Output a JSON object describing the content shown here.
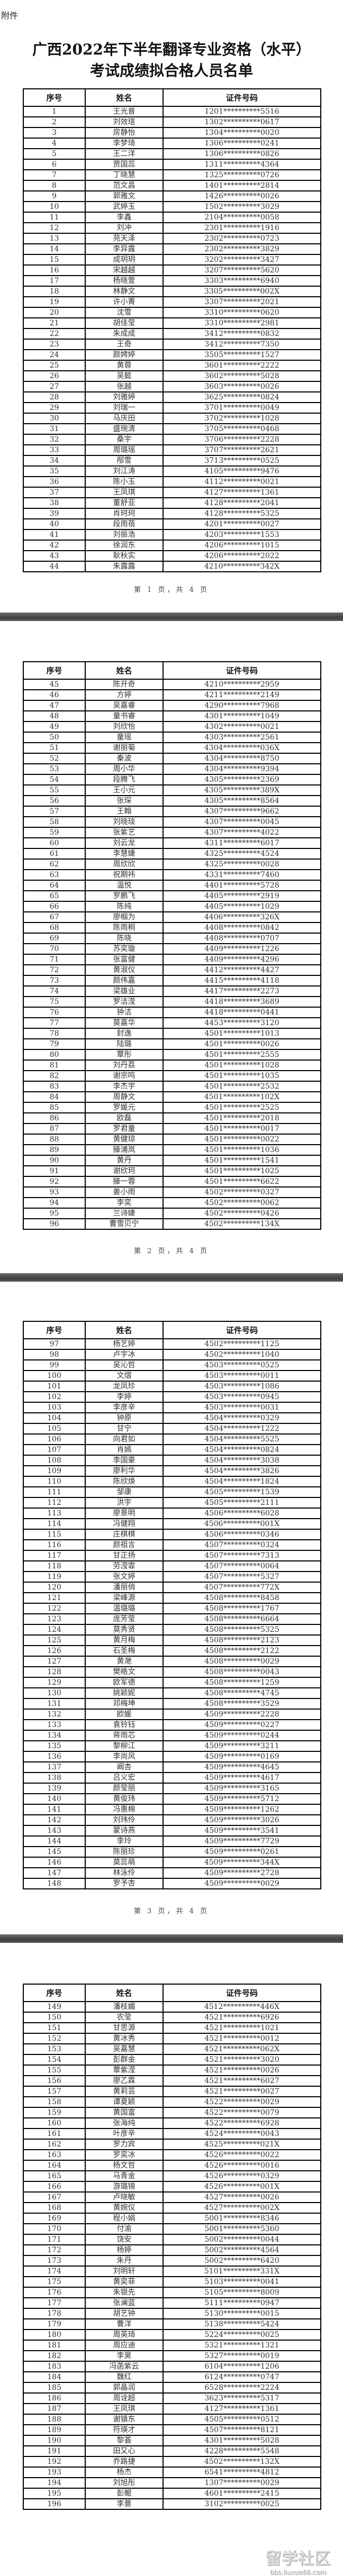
{
  "attachment_label": "附件",
  "title_line1": "广西2022年下半年翻译专业资格（水平）",
  "title_line2": "考试成绩拟合格人员名单",
  "columns": [
    "序号",
    "姓名",
    "证件号码"
  ],
  "watermark": {
    "text": "留学社区",
    "url": "bbs.liuxue86.com"
  },
  "pages": [
    {
      "footer": "第 1 页，共 4 页",
      "rows": [
        [
          "1",
          "王光普",
          "1201**********5516"
        ],
        [
          "2",
          "刘效瑄",
          "1302**********0617"
        ],
        [
          "3",
          "房静怡",
          "1304**********0020"
        ],
        [
          "4",
          "李梦琦",
          "1306**********0241"
        ],
        [
          "5",
          "王二洋",
          "1306**********0826"
        ],
        [
          "6",
          "贾国蕊",
          "1311**********4364"
        ],
        [
          "7",
          "丁晓慧",
          "1325**********0726"
        ],
        [
          "8",
          "范文昌",
          "1401**********2814"
        ],
        [
          "9",
          "郭雅文",
          "1426**********0026"
        ],
        [
          "10",
          "武婷玉",
          "1502**********3029"
        ],
        [
          "11",
          "李鑫",
          "2104**********0058"
        ],
        [
          "12",
          "刘冲",
          "2301**********1916"
        ],
        [
          "13",
          "苑天泽",
          "2302**********0723"
        ],
        [
          "14",
          "李异露",
          "2302**********3829"
        ],
        [
          "15",
          "成玥玥",
          "3202**********3427"
        ],
        [
          "16",
          "宋越越",
          "3207**********5620"
        ],
        [
          "17",
          "杨晓萱",
          "3303**********6940"
        ],
        [
          "18",
          "林静文",
          "3305**********002X"
        ],
        [
          "19",
          "许小菁",
          "3307**********2021"
        ],
        [
          "20",
          "沈雪",
          "3310**********0620"
        ],
        [
          "21",
          "胡佳莹",
          "3310**********2981"
        ],
        [
          "22",
          "朱成成",
          "3412**********0832"
        ],
        [
          "23",
          "王奇",
          "3412**********7350"
        ],
        [
          "24",
          "颜娉婷",
          "3505**********1527"
        ],
        [
          "25",
          "黄蓉",
          "3601**********2222"
        ],
        [
          "26",
          "吴懿",
          "3602**********5028"
        ],
        [
          "27",
          "张越",
          "3603**********0026"
        ],
        [
          "28",
          "刘雅婷",
          "3625**********0824"
        ],
        [
          "29",
          "刘瑞一",
          "3701**********0049"
        ],
        [
          "30",
          "马庆田",
          "3702**********1028"
        ],
        [
          "31",
          "盛琬清",
          "3705**********0468"
        ],
        [
          "32",
          "桑宇",
          "3706**********2228"
        ],
        [
          "33",
          "周璐瑶",
          "3707**********2621"
        ],
        [
          "34",
          "邴雪",
          "3713**********0525"
        ],
        [
          "35",
          "刘江涛",
          "4105**********9476"
        ],
        [
          "36",
          "陈小玉",
          "4112**********0021"
        ],
        [
          "37",
          "王凤琪",
          "4127**********1361"
        ],
        [
          "38",
          "董舒亚",
          "4128**********2041"
        ],
        [
          "39",
          "肖珂珂",
          "4128**********5325"
        ],
        [
          "40",
          "段雨蓓",
          "4201**********0027"
        ],
        [
          "41",
          "刘振浩",
          "4203**********1553"
        ],
        [
          "42",
          "徐润东",
          "4206**********1015"
        ],
        [
          "43",
          "耿秋实",
          "4206**********2022"
        ],
        [
          "44",
          "朱露露",
          "4210**********342X"
        ]
      ]
    },
    {
      "footer": "第 2 页，共 4 页",
      "rows": [
        [
          "45",
          "陈开奇",
          "4210**********2959"
        ],
        [
          "46",
          "方婷",
          "4211**********2149"
        ],
        [
          "47",
          "吴嘉睿",
          "4290**********7968"
        ],
        [
          "48",
          "童书睿",
          "4301**********1049"
        ],
        [
          "49",
          "刘欣怡",
          "4302**********0021"
        ],
        [
          "50",
          "童瑶",
          "4303**********2561"
        ],
        [
          "51",
          "谢丽菊",
          "4304**********036X"
        ],
        [
          "52",
          "秦波",
          "4304**********8750"
        ],
        [
          "53",
          "周小华",
          "4304**********9394"
        ],
        [
          "54",
          "段腾飞",
          "4305**********2369"
        ],
        [
          "55",
          "王小元",
          "4305**********389X"
        ],
        [
          "56",
          "张琛",
          "4305**********8564"
        ],
        [
          "57",
          "王翰",
          "4307**********9662"
        ],
        [
          "58",
          "刘晓琰",
          "4307**********0045"
        ],
        [
          "59",
          "张紫艺",
          "4307**********4022"
        ],
        [
          "60",
          "刘云龙",
          "4311**********6017"
        ],
        [
          "61",
          "李慧婕",
          "4325**********4524"
        ],
        [
          "62",
          "周欣欣",
          "4325**********0028"
        ],
        [
          "63",
          "祝期祎",
          "4331**********7460"
        ],
        [
          "64",
          "温悦",
          "4401**********5728"
        ],
        [
          "65",
          "罗鹏飞",
          "4405**********2919"
        ],
        [
          "66",
          "陈纯",
          "4405**********1029"
        ],
        [
          "67",
          "廖帼为",
          "4406**********326X"
        ],
        [
          "68",
          "陈雨桐",
          "4408**********0842"
        ],
        [
          "69",
          "陈晓",
          "4408**********0707"
        ],
        [
          "70",
          "苏奕璇",
          "4409**********1226"
        ],
        [
          "71",
          "张富健",
          "4409**********4296"
        ],
        [
          "72",
          "黄淑仪",
          "4412**********4427"
        ],
        [
          "73",
          "颜伟嘉",
          "4415**********4118"
        ],
        [
          "74",
          "梁雄业",
          "4417**********2273"
        ],
        [
          "75",
          "罗洁滢",
          "4418**********3689"
        ],
        [
          "76",
          "钟洁",
          "4418**********0441"
        ],
        [
          "77",
          "莫嘉华",
          "4453**********3120"
        ],
        [
          "78",
          "封逸",
          "4501**********1013"
        ],
        [
          "79",
          "陆璐",
          "4501**********0026"
        ],
        [
          "80",
          "覃彤",
          "4501**********2555"
        ],
        [
          "81",
          "刘丹荔",
          "4501**********1028"
        ],
        [
          "82",
          "谢宗鸣",
          "4501**********1035"
        ],
        [
          "83",
          "李杰宇",
          "4501**********2532"
        ],
        [
          "84",
          "周静文",
          "4501**********102X"
        ],
        [
          "85",
          "罗媛元",
          "4501**********2525"
        ],
        [
          "86",
          "欧磊",
          "4501**********2018"
        ],
        [
          "87",
          "罗君童",
          "4501**********0017"
        ],
        [
          "88",
          "黄健琼",
          "4501**********0022"
        ],
        [
          "89",
          "滕浦岚",
          "4501**********1036"
        ],
        [
          "90",
          "黄丹",
          "4501**********1541"
        ],
        [
          "91",
          "谢欣珂",
          "4501**********1025"
        ],
        [
          "92",
          "滕一蓉",
          "4501**********6622"
        ],
        [
          "93",
          "姜小雨",
          "4502**********0327"
        ],
        [
          "94",
          "李奕",
          "4502**********0062"
        ],
        [
          "95",
          "兰诗婕",
          "4502**********0426"
        ],
        [
          "96",
          "曹雪贝宁",
          "4502**********134X"
        ]
      ]
    },
    {
      "footer": "第 3 页，共 4 页",
      "rows": [
        [
          "97",
          "杨艺婷",
          "4502**********1125"
        ],
        [
          "98",
          "卢宇冰",
          "4502**********1040"
        ],
        [
          "99",
          "吴沁哲",
          "4503**********0525"
        ],
        [
          "100",
          "文熠",
          "4503**********0011"
        ],
        [
          "101",
          "龙凤珍",
          "4503**********1086"
        ],
        [
          "102",
          "李婷",
          "4503**********0945"
        ],
        [
          "103",
          "李彦辛",
          "4503**********0031"
        ],
        [
          "104",
          "钟原",
          "4504**********0329"
        ],
        [
          "105",
          "甘宁",
          "4504**********1222"
        ],
        [
          "106",
          "向君如",
          "4504**********5525"
        ],
        [
          "107",
          "肖嫣",
          "4504**********0824"
        ],
        [
          "108",
          "李国豪",
          "4504**********3038"
        ],
        [
          "109",
          "廖利华",
          "4504**********3826"
        ],
        [
          "110",
          "陈欣焕",
          "4504**********1824"
        ],
        [
          "111",
          "邹康",
          "4505**********1539"
        ],
        [
          "112",
          "洪宇",
          "4505**********2111"
        ],
        [
          "113",
          "廖景明",
          "4506**********6028"
        ],
        [
          "114",
          "冯健翔",
          "4506**********001X"
        ],
        [
          "115",
          "庄棋棋",
          "4506**********0346"
        ],
        [
          "116",
          "颜祖言",
          "4507**********0324"
        ],
        [
          "117",
          "甘正扬",
          "4507**********7313"
        ],
        [
          "118",
          "劳滢霏",
          "4507**********0064"
        ],
        [
          "119",
          "张文婷",
          "4507**********5327"
        ],
        [
          "120",
          "潘丽俏",
          "4507**********772X"
        ],
        [
          "121",
          "梁峰源",
          "4508**********8458"
        ],
        [
          "122",
          "温璐璐",
          "4508**********1767"
        ],
        [
          "123",
          "庞芳莹",
          "4508**********6664"
        ],
        [
          "124",
          "莫秀贤",
          "4508**********5325"
        ],
        [
          "125",
          "黄月梅",
          "4508**********2123"
        ],
        [
          "126",
          "石圣梅",
          "4508**********2122"
        ],
        [
          "127",
          "黄滟",
          "4508**********0029"
        ],
        [
          "128",
          "樊皓文",
          "4508**********0043"
        ],
        [
          "129",
          "欧军德",
          "4508**********1259"
        ],
        [
          "130",
          "姚颖妮",
          "4508**********4745"
        ],
        [
          "131",
          "邓梅坤",
          "4508**********3529"
        ],
        [
          "132",
          "欧媛",
          "4509**********2228"
        ],
        [
          "133",
          "袁铃钰",
          "4509**********0227"
        ],
        [
          "134",
          "蒋雨芯",
          "4509**********0244"
        ],
        [
          "135",
          "黎柳江",
          "4509**********3211"
        ],
        [
          "136",
          "李尚风",
          "4509**********0169"
        ],
        [
          "137",
          "阚杏",
          "4509**********4645"
        ],
        [
          "138",
          "吕义宏",
          "4509**********4617"
        ],
        [
          "139",
          "颜莹丽",
          "4509**********3165"
        ],
        [
          "140",
          "黄俊玮",
          "4509**********5712"
        ],
        [
          "141",
          "冯惠棉",
          "4509**********1262"
        ],
        [
          "142",
          "刘玮伶",
          "4509**********3026"
        ],
        [
          "143",
          "蒙诗燕",
          "4509**********3541"
        ],
        [
          "144",
          "李玲",
          "4509**********7729"
        ],
        [
          "145",
          "陈丽珍",
          "4509**********0261"
        ],
        [
          "146",
          "莫蕊萌",
          "4509**********344X"
        ],
        [
          "147",
          "林泳伶",
          "4509**********2728"
        ],
        [
          "148",
          "罗予杏",
          "4509**********0029"
        ]
      ]
    },
    {
      "footer": "",
      "rows": [
        [
          "149",
          "潘枝媚",
          "4512**********446X"
        ],
        [
          "150",
          "农莹",
          "4521**********6926"
        ],
        [
          "151",
          "甘思源",
          "4521**********1021"
        ],
        [
          "152",
          "黄冰秀",
          "4521**********0012"
        ],
        [
          "153",
          "吴嘉慧",
          "4521**********062X"
        ],
        [
          "154",
          "彭群金",
          "4521**********3020"
        ],
        [
          "155",
          "覃紫滢",
          "4521**********0026"
        ],
        [
          "156",
          "廖乙霖",
          "4521**********6027"
        ],
        [
          "157",
          "黄莉芸",
          "4521**********0027"
        ],
        [
          "158",
          "谭夏颖",
          "4522**********0029"
        ],
        [
          "159",
          "黄国富",
          "4522**********0079"
        ],
        [
          "160",
          "张海纯",
          "4522**********6928"
        ],
        [
          "161",
          "叶彦辛",
          "4524**********0043"
        ],
        [
          "162",
          "罗力宾",
          "4525**********021X"
        ],
        [
          "163",
          "罗奕冰",
          "4526**********0022"
        ],
        [
          "164",
          "杨文哲",
          "4526**********0016"
        ],
        [
          "165",
          "马青金",
          "4526**********0329"
        ],
        [
          "166",
          "游璐锦",
          "4526**********001X"
        ],
        [
          "167",
          "卢晓敏",
          "4527**********0026"
        ],
        [
          "168",
          "黄婉仪",
          "4527**********002X"
        ],
        [
          "169",
          "程小娟",
          "5001**********8346"
        ],
        [
          "170",
          "付渝",
          "5001**********5360"
        ],
        [
          "171",
          "饶安",
          "5002**********0044"
        ],
        [
          "172",
          "杨婷",
          "5002**********4564"
        ],
        [
          "173",
          "朱丹",
          "5002**********6420"
        ],
        [
          "174",
          "刘明轩",
          "5101**********331X"
        ],
        [
          "175",
          "黄奕菲",
          "5103**********0041"
        ],
        [
          "176",
          "朱银先",
          "5105**********8009"
        ],
        [
          "177",
          "张澜蓝",
          "5111**********0947"
        ],
        [
          "178",
          "胡艺钟",
          "5130**********0015"
        ],
        [
          "179",
          "曹洋",
          "5138**********5424"
        ],
        [
          "180",
          "周英琦",
          "5224**********0025"
        ],
        [
          "181",
          "周应迪",
          "5321**********1321"
        ],
        [
          "182",
          "李昊",
          "5327**********0019"
        ],
        [
          "183",
          "冯菡紫云",
          "6104**********1206"
        ],
        [
          "184",
          "魏红",
          "6124**********0747"
        ],
        [
          "185",
          "郭晶润",
          "6528**********2224"
        ],
        [
          "186",
          "周诠超",
          "3623**********5317"
        ],
        [
          "187",
          "王凤琪",
          "4127**********1361"
        ],
        [
          "188",
          "谢镇东",
          "4505**********0512"
        ],
        [
          "189",
          "符瑛才",
          "4507**********8121"
        ],
        [
          "190",
          "黎荟",
          "4301**********5028"
        ],
        [
          "191",
          "田又心",
          "4228**********5548"
        ],
        [
          "192",
          "乔路捷",
          "4502**********132X"
        ],
        [
          "193",
          "杨杰",
          "6541**********4812"
        ],
        [
          "194",
          "刘旭彤",
          "1307**********0029"
        ],
        [
          "195",
          "彭鲲",
          "4601**********2415"
        ],
        [
          "196",
          "李薏",
          "3102**********0025"
        ]
      ]
    }
  ]
}
